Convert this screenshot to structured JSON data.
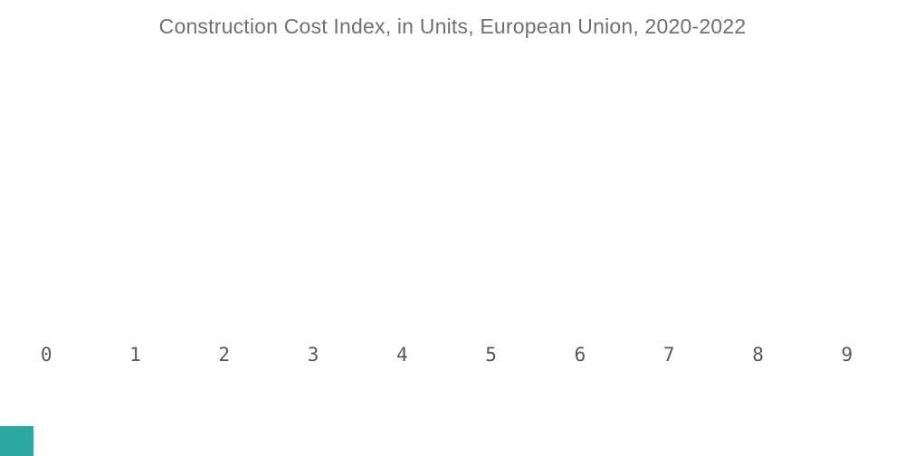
{
  "chart": {
    "title": "Construction Cost Index, in Units, European Union, 2020-2022",
    "title_color": "#707070",
    "tick_color": "#575757",
    "x_ticks": [
      "0",
      "1",
      "2",
      "3",
      "4",
      "5",
      "6",
      "7",
      "8",
      "9"
    ],
    "swatch_color": "#2AA79F",
    "swatch_style": "background-color:#2AA79F"
  },
  "chart_data": {
    "type": "line",
    "title": "Construction Cost Index, in Units, European Union, 2020-2022",
    "x": [
      0,
      1,
      2,
      3,
      4,
      5,
      6,
      7,
      8,
      9
    ],
    "series": [],
    "xlabel": "",
    "ylabel": "",
    "x_tick_labels": [
      "0",
      "1",
      "2",
      "3",
      "4",
      "5",
      "6",
      "7",
      "8",
      "9"
    ],
    "grid": "off",
    "legend": "none",
    "notes": "Plot area is empty: only the title and x-axis tick labels are rendered; a small teal square sits in the bottom-left corner."
  }
}
